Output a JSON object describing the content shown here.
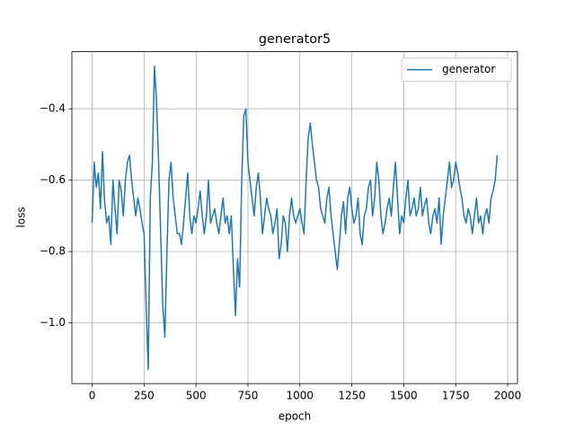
{
  "chart_data": {
    "type": "line",
    "title": "generator5",
    "xlabel": "epoch",
    "ylabel": "loss",
    "x": [
      0,
      10,
      20,
      30,
      40,
      50,
      60,
      70,
      80,
      90,
      100,
      110,
      120,
      130,
      140,
      150,
      160,
      170,
      180,
      190,
      200,
      210,
      220,
      230,
      240,
      250,
      260,
      270,
      280,
      290,
      300,
      310,
      320,
      330,
      340,
      350,
      360,
      370,
      380,
      390,
      400,
      410,
      420,
      430,
      440,
      450,
      460,
      470,
      480,
      490,
      500,
      510,
      520,
      530,
      540,
      550,
      560,
      570,
      580,
      590,
      600,
      610,
      620,
      630,
      640,
      650,
      660,
      670,
      680,
      690,
      700,
      710,
      720,
      730,
      740,
      750,
      760,
      770,
      780,
      790,
      800,
      810,
      820,
      830,
      840,
      850,
      860,
      870,
      880,
      890,
      900,
      910,
      920,
      930,
      940,
      950,
      960,
      970,
      980,
      990,
      1000,
      1010,
      1020,
      1030,
      1040,
      1050,
      1060,
      1070,
      1080,
      1090,
      1100,
      1110,
      1120,
      1130,
      1140,
      1150,
      1160,
      1170,
      1180,
      1190,
      1200,
      1210,
      1220,
      1230,
      1240,
      1250,
      1260,
      1270,
      1280,
      1290,
      1300,
      1310,
      1320,
      1330,
      1340,
      1350,
      1360,
      1370,
      1380,
      1390,
      1400,
      1410,
      1420,
      1430,
      1440,
      1450,
      1460,
      1470,
      1480,
      1490,
      1500,
      1510,
      1520,
      1530,
      1540,
      1550,
      1560,
      1570,
      1580,
      1590,
      1600,
      1610,
      1620,
      1630,
      1640,
      1650,
      1660,
      1670,
      1680,
      1690,
      1700,
      1710,
      1720,
      1730,
      1740,
      1750,
      1760,
      1770,
      1780,
      1790,
      1800,
      1810,
      1820,
      1830,
      1840,
      1850,
      1860,
      1870,
      1880,
      1890,
      1900,
      1910,
      1920,
      1930,
      1940,
      1950
    ],
    "series": [
      {
        "name": "generator",
        "color": "#1f77b4",
        "values": [
          -0.72,
          -0.55,
          -0.62,
          -0.58,
          -0.68,
          -0.52,
          -0.66,
          -0.72,
          -0.7,
          -0.78,
          -0.6,
          -0.68,
          -0.75,
          -0.6,
          -0.63,
          -0.7,
          -0.6,
          -0.55,
          -0.53,
          -0.6,
          -0.65,
          -0.7,
          -0.65,
          -0.68,
          -0.72,
          -0.75,
          -0.95,
          -1.13,
          -0.65,
          -0.55,
          -0.28,
          -0.38,
          -0.55,
          -0.75,
          -0.95,
          -1.04,
          -0.8,
          -0.6,
          -0.55,
          -0.65,
          -0.7,
          -0.75,
          -0.75,
          -0.78,
          -0.72,
          -0.65,
          -0.58,
          -0.7,
          -0.75,
          -0.7,
          -0.72,
          -0.68,
          -0.63,
          -0.7,
          -0.75,
          -0.7,
          -0.6,
          -0.72,
          -0.7,
          -0.68,
          -0.72,
          -0.75,
          -0.7,
          -0.65,
          -0.72,
          -0.7,
          -0.75,
          -0.7,
          -0.85,
          -0.98,
          -0.82,
          -0.9,
          -0.6,
          -0.42,
          -0.4,
          -0.55,
          -0.6,
          -0.65,
          -0.7,
          -0.62,
          -0.58,
          -0.65,
          -0.75,
          -0.7,
          -0.65,
          -0.68,
          -0.7,
          -0.75,
          -0.72,
          -0.68,
          -0.82,
          -0.78,
          -0.7,
          -0.72,
          -0.8,
          -0.7,
          -0.65,
          -0.7,
          -0.72,
          -0.7,
          -0.68,
          -0.72,
          -0.75,
          -0.6,
          -0.48,
          -0.44,
          -0.5,
          -0.55,
          -0.6,
          -0.62,
          -0.68,
          -0.7,
          -0.72,
          -0.65,
          -0.62,
          -0.7,
          -0.75,
          -0.8,
          -0.85,
          -0.78,
          -0.7,
          -0.66,
          -0.75,
          -0.65,
          -0.62,
          -0.68,
          -0.72,
          -0.7,
          -0.65,
          -0.75,
          -0.78,
          -0.7,
          -0.68,
          -0.62,
          -0.6,
          -0.7,
          -0.65,
          -0.55,
          -0.6,
          -0.7,
          -0.75,
          -0.72,
          -0.68,
          -0.65,
          -0.7,
          -0.62,
          -0.55,
          -0.65,
          -0.75,
          -0.7,
          -0.72,
          -0.65,
          -0.6,
          -0.7,
          -0.68,
          -0.65,
          -0.7,
          -0.68,
          -0.62,
          -0.7,
          -0.67,
          -0.65,
          -0.72,
          -0.75,
          -0.7,
          -0.68,
          -0.72,
          -0.65,
          -0.78,
          -0.7,
          -0.65,
          -0.6,
          -0.55,
          -0.62,
          -0.6,
          -0.55,
          -0.58,
          -0.62,
          -0.65,
          -0.7,
          -0.72,
          -0.68,
          -0.7,
          -0.75,
          -0.7,
          -0.65,
          -0.72,
          -0.7,
          -0.75,
          -0.7,
          -0.68,
          -0.72,
          -0.65,
          -0.63,
          -0.6,
          -0.53
        ]
      }
    ],
    "xlim": [
      -97.5,
      2047.5
    ],
    "ylim": [
      -1.17,
      -0.24
    ],
    "xticks": [
      0,
      250,
      500,
      750,
      1000,
      1250,
      1500,
      1750,
      2000
    ],
    "yticks": [
      {
        "value": -1.0,
        "label": "−1.0"
      },
      {
        "value": -0.8,
        "label": "−0.8"
      },
      {
        "value": -0.6,
        "label": "−0.6"
      },
      {
        "value": -0.4,
        "label": "−0.4"
      }
    ],
    "grid": true,
    "legend": "upper right"
  }
}
